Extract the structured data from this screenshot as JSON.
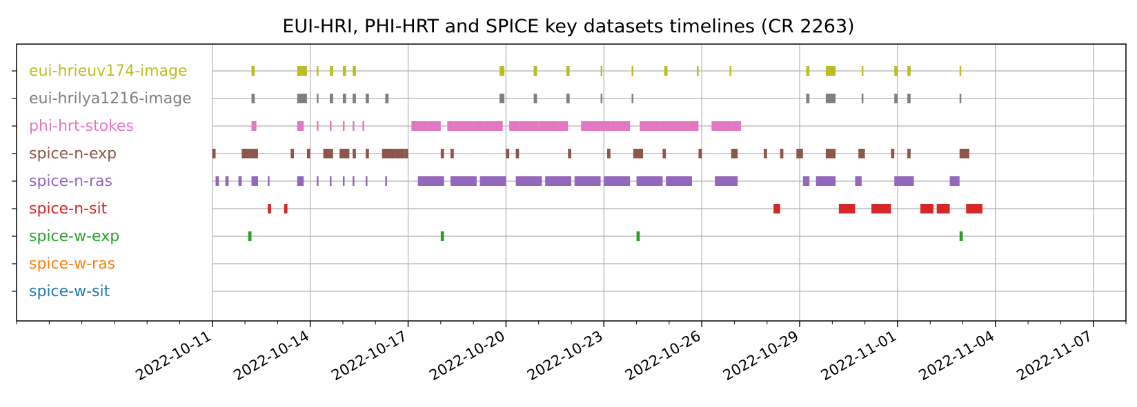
{
  "chart_data": {
    "type": "timeline",
    "title": "EUI-HRI, PHI-HRT and SPICE key datasets timelines (CR 2263)",
    "xlabel": "",
    "ylabel": "",
    "x_range": [
      "2022-10-05",
      "2022-11-08"
    ],
    "x_ticks": [
      "2022-10-11",
      "2022-10-14",
      "2022-10-17",
      "2022-10-20",
      "2022-10-23",
      "2022-10-26",
      "2022-10-29",
      "2022-11-01",
      "2022-11-04",
      "2022-11-07"
    ],
    "grid": true,
    "series": [
      {
        "name": "eui-hrieuv174-image",
        "color": "#bcbd22",
        "intervals": [
          [
            "2022-10-12T04:48",
            "2022-10-12T07:12"
          ],
          [
            "2022-10-13T14:24",
            "2022-10-13T21:36"
          ],
          [
            "2022-10-14T04:48",
            "2022-10-14T06:00"
          ],
          [
            "2022-10-14T14:24",
            "2022-10-14T16:48"
          ],
          [
            "2022-10-15T00:00",
            "2022-10-15T02:24"
          ],
          [
            "2022-10-15T07:12",
            "2022-10-15T09:36"
          ],
          [
            "2022-10-19T19:12",
            "2022-10-19T22:48"
          ],
          [
            "2022-10-20T20:24",
            "2022-10-20T22:48"
          ],
          [
            "2022-10-21T20:24",
            "2022-10-21T22:48"
          ],
          [
            "2022-10-22T21:36",
            "2022-10-22T22:48"
          ],
          [
            "2022-10-23T20:24",
            "2022-10-23T21:36"
          ],
          [
            "2022-10-24T20:24",
            "2022-10-24T22:48"
          ],
          [
            "2022-10-25T20:24",
            "2022-10-25T21:36"
          ],
          [
            "2022-10-26T20:24",
            "2022-10-26T21:36"
          ],
          [
            "2022-10-29T04:48",
            "2022-10-29T07:12"
          ],
          [
            "2022-10-29T19:12",
            "2022-10-30T02:24"
          ],
          [
            "2022-10-30T21:36",
            "2022-10-30T22:48"
          ],
          [
            "2022-10-31T21:36",
            "2022-11-01T00:00"
          ],
          [
            "2022-11-01T07:12",
            "2022-11-01T09:36"
          ],
          [
            "2022-11-02T21:36",
            "2022-11-02T22:48"
          ]
        ]
      },
      {
        "name": "eui-hrilya1216-image",
        "color": "#7f7f7f",
        "intervals": [
          [
            "2022-10-12T04:48",
            "2022-10-12T07:12"
          ],
          [
            "2022-10-13T14:24",
            "2022-10-13T21:36"
          ],
          [
            "2022-10-14T04:48",
            "2022-10-14T06:00"
          ],
          [
            "2022-10-14T14:24",
            "2022-10-14T16:48"
          ],
          [
            "2022-10-15T00:00",
            "2022-10-15T02:24"
          ],
          [
            "2022-10-15T07:12",
            "2022-10-15T09:36"
          ],
          [
            "2022-10-15T16:48",
            "2022-10-15T19:12"
          ],
          [
            "2022-10-16T07:12",
            "2022-10-16T09:36"
          ],
          [
            "2022-10-19T19:12",
            "2022-10-19T22:48"
          ],
          [
            "2022-10-20T20:24",
            "2022-10-20T22:48"
          ],
          [
            "2022-10-21T20:24",
            "2022-10-21T22:48"
          ],
          [
            "2022-10-22T21:36",
            "2022-10-22T22:48"
          ],
          [
            "2022-10-23T20:24",
            "2022-10-23T21:36"
          ],
          [
            "2022-10-29T04:48",
            "2022-10-29T07:12"
          ],
          [
            "2022-10-29T19:12",
            "2022-10-30T02:24"
          ],
          [
            "2022-10-30T21:36",
            "2022-10-30T22:48"
          ],
          [
            "2022-10-31T21:36",
            "2022-11-01T00:00"
          ],
          [
            "2022-11-01T07:12",
            "2022-11-01T09:36"
          ],
          [
            "2022-11-02T21:36",
            "2022-11-02T22:48"
          ]
        ]
      },
      {
        "name": "phi-hrt-stokes",
        "color": "#e377c2",
        "intervals": [
          [
            "2022-10-12T04:48",
            "2022-10-12T08:24"
          ],
          [
            "2022-10-13T14:24",
            "2022-10-13T19:12"
          ],
          [
            "2022-10-14T04:48",
            "2022-10-14T05:31"
          ],
          [
            "2022-10-14T14:24",
            "2022-10-14T15:07"
          ],
          [
            "2022-10-15T00:00",
            "2022-10-15T00:43"
          ],
          [
            "2022-10-15T07:12",
            "2022-10-15T07:55"
          ],
          [
            "2022-10-15T14:24",
            "2022-10-15T15:07"
          ],
          [
            "2022-10-17T02:24",
            "2022-10-17T14:24"
          ],
          [
            "2022-10-17T14:24",
            "2022-10-18T00:00"
          ],
          [
            "2022-10-18T04:48",
            "2022-10-18T09:36"
          ],
          [
            "2022-10-18T09:36",
            "2022-10-18T16:48"
          ],
          [
            "2022-10-18T16:48",
            "2022-10-19T00:00"
          ],
          [
            "2022-10-19T00:00",
            "2022-10-19T07:12"
          ],
          [
            "2022-10-19T07:12",
            "2022-10-19T14:24"
          ],
          [
            "2022-10-19T14:24",
            "2022-10-19T21:36"
          ],
          [
            "2022-10-20T02:24",
            "2022-10-20T09:36"
          ],
          [
            "2022-10-20T09:36",
            "2022-10-20T16:48"
          ],
          [
            "2022-10-20T16:48",
            "2022-10-21T00:00"
          ],
          [
            "2022-10-21T00:00",
            "2022-10-21T07:12"
          ],
          [
            "2022-10-21T07:12",
            "2022-10-21T14:24"
          ],
          [
            "2022-10-21T14:24",
            "2022-10-21T21:36"
          ],
          [
            "2022-10-22T07:12",
            "2022-10-22T14:24"
          ],
          [
            "2022-10-22T14:24",
            "2022-10-22T21:36"
          ],
          [
            "2022-10-22T21:36",
            "2022-10-23T04:48"
          ],
          [
            "2022-10-23T04:48",
            "2022-10-23T12:00"
          ],
          [
            "2022-10-23T12:00",
            "2022-10-23T19:12"
          ],
          [
            "2022-10-24T02:24",
            "2022-10-24T09:36"
          ],
          [
            "2022-10-24T09:36",
            "2022-10-24T16:48"
          ],
          [
            "2022-10-24T16:48",
            "2022-10-25T00:00"
          ],
          [
            "2022-10-25T00:00",
            "2022-10-25T07:12"
          ],
          [
            "2022-10-25T07:12",
            "2022-10-25T14:24"
          ],
          [
            "2022-10-25T14:24",
            "2022-10-25T21:36"
          ],
          [
            "2022-10-26T07:12",
            "2022-10-26T14:24"
          ],
          [
            "2022-10-26T14:24",
            "2022-10-26T21:36"
          ],
          [
            "2022-10-26T21:36",
            "2022-10-27T04:48"
          ]
        ]
      },
      {
        "name": "spice-n-exp",
        "color": "#8c564b",
        "intervals": [
          [
            "2022-10-11T00:00",
            "2022-10-11T02:24"
          ],
          [
            "2022-10-11T21:36",
            "2022-10-12T02:24"
          ],
          [
            "2022-10-12T02:24",
            "2022-10-12T04:48"
          ],
          [
            "2022-10-12T04:48",
            "2022-10-12T09:36"
          ],
          [
            "2022-10-13T09:36",
            "2022-10-13T12:00"
          ],
          [
            "2022-10-13T21:36",
            "2022-10-14T00:00"
          ],
          [
            "2022-10-14T09:36",
            "2022-10-14T16:48"
          ],
          [
            "2022-10-14T21:36",
            "2022-10-15T04:48"
          ],
          [
            "2022-10-15T07:12",
            "2022-10-15T09:36"
          ],
          [
            "2022-10-15T16:48",
            "2022-10-15T19:12"
          ],
          [
            "2022-10-16T04:48",
            "2022-10-16T14:24"
          ],
          [
            "2022-10-16T14:24",
            "2022-10-16T21:36"
          ],
          [
            "2022-10-16T21:36",
            "2022-10-17T00:00"
          ],
          [
            "2022-10-18T00:00",
            "2022-10-18T02:24"
          ],
          [
            "2022-10-18T07:12",
            "2022-10-18T09:36"
          ],
          [
            "2022-10-20T00:00",
            "2022-10-20T02:24"
          ],
          [
            "2022-10-20T07:12",
            "2022-10-20T09:36"
          ],
          [
            "2022-10-21T21:36",
            "2022-10-22T00:00"
          ],
          [
            "2022-10-23T02:24",
            "2022-10-23T04:48"
          ],
          [
            "2022-10-23T21:36",
            "2022-10-24T04:48"
          ],
          [
            "2022-10-24T19:12",
            "2022-10-24T21:36"
          ],
          [
            "2022-10-25T21:36",
            "2022-10-26T00:00"
          ],
          [
            "2022-10-26T21:36",
            "2022-10-27T02:24"
          ],
          [
            "2022-10-27T21:36",
            "2022-10-28T00:00"
          ],
          [
            "2022-10-28T09:36",
            "2022-10-28T12:00"
          ],
          [
            "2022-10-28T21:36",
            "2022-10-29T02:24"
          ],
          [
            "2022-10-29T19:12",
            "2022-10-30T02:24"
          ],
          [
            "2022-10-30T19:12",
            "2022-10-31T00:00"
          ],
          [
            "2022-10-31T19:12",
            "2022-10-31T21:36"
          ],
          [
            "2022-11-01T07:12",
            "2022-11-01T09:36"
          ],
          [
            "2022-11-02T21:36",
            "2022-11-03T04:48"
          ]
        ]
      },
      {
        "name": "spice-n-ras",
        "color": "#9467bd",
        "intervals": [
          [
            "2022-10-11T02:24",
            "2022-10-11T04:48"
          ],
          [
            "2022-10-11T09:36",
            "2022-10-11T12:00"
          ],
          [
            "2022-10-11T19:12",
            "2022-10-11T21:36"
          ],
          [
            "2022-10-12T04:48",
            "2022-10-12T09:36"
          ],
          [
            "2022-10-12T16:48",
            "2022-10-12T18:00"
          ],
          [
            "2022-10-13T14:24",
            "2022-10-13T19:12"
          ],
          [
            "2022-10-14T04:48",
            "2022-10-14T05:31"
          ],
          [
            "2022-10-14T14:24",
            "2022-10-14T15:07"
          ],
          [
            "2022-10-15T00:00",
            "2022-10-15T00:43"
          ],
          [
            "2022-10-15T07:12",
            "2022-10-15T07:55"
          ],
          [
            "2022-10-15T16:48",
            "2022-10-15T17:31"
          ],
          [
            "2022-10-16T07:12",
            "2022-10-16T07:55"
          ],
          [
            "2022-10-17T07:12",
            "2022-10-18T02:24"
          ],
          [
            "2022-10-18T07:12",
            "2022-10-19T02:24"
          ],
          [
            "2022-10-19T04:48",
            "2022-10-20T00:00"
          ],
          [
            "2022-10-20T07:12",
            "2022-10-21T02:24"
          ],
          [
            "2022-10-21T04:48",
            "2022-10-22T00:00"
          ],
          [
            "2022-10-22T02:24",
            "2022-10-22T21:36"
          ],
          [
            "2022-10-23T00:00",
            "2022-10-23T19:12"
          ],
          [
            "2022-10-24T00:00",
            "2022-10-24T19:12"
          ],
          [
            "2022-10-24T21:36",
            "2022-10-25T16:48"
          ],
          [
            "2022-10-26T09:36",
            "2022-10-27T02:24"
          ],
          [
            "2022-10-29T02:24",
            "2022-10-29T07:12"
          ],
          [
            "2022-10-29T12:00",
            "2022-10-30T02:24"
          ],
          [
            "2022-10-30T16:48",
            "2022-10-30T21:36"
          ],
          [
            "2022-10-31T21:36",
            "2022-11-01T12:00"
          ],
          [
            "2022-11-02T14:24",
            "2022-11-02T21:36"
          ]
        ]
      },
      {
        "name": "spice-n-sit",
        "color": "#d62728",
        "intervals": [
          [
            "2022-10-12T16:48",
            "2022-10-12T19:12"
          ],
          [
            "2022-10-13T04:48",
            "2022-10-13T07:12"
          ],
          [
            "2022-10-28T04:48",
            "2022-10-28T09:36"
          ],
          [
            "2022-10-30T04:48",
            "2022-10-30T16:48"
          ],
          [
            "2022-10-31T04:48",
            "2022-10-31T19:12"
          ],
          [
            "2022-11-01T16:48",
            "2022-11-02T02:24"
          ],
          [
            "2022-11-02T04:48",
            "2022-11-02T14:24"
          ],
          [
            "2022-11-03T02:24",
            "2022-11-03T14:24"
          ]
        ]
      },
      {
        "name": "spice-w-exp",
        "color": "#2ca02c",
        "intervals": [
          [
            "2022-10-12T02:24",
            "2022-10-12T04:48"
          ],
          [
            "2022-10-18T00:00",
            "2022-10-18T02:24"
          ],
          [
            "2022-10-23T24:00",
            "2022-10-24T02:24"
          ],
          [
            "2022-11-02T21:36",
            "2022-11-03T00:00"
          ]
        ]
      },
      {
        "name": "spice-w-ras",
        "color": "#ff7f0e",
        "intervals": []
      },
      {
        "name": "spice-w-sit",
        "color": "#1f77b4",
        "intervals": []
      }
    ]
  }
}
